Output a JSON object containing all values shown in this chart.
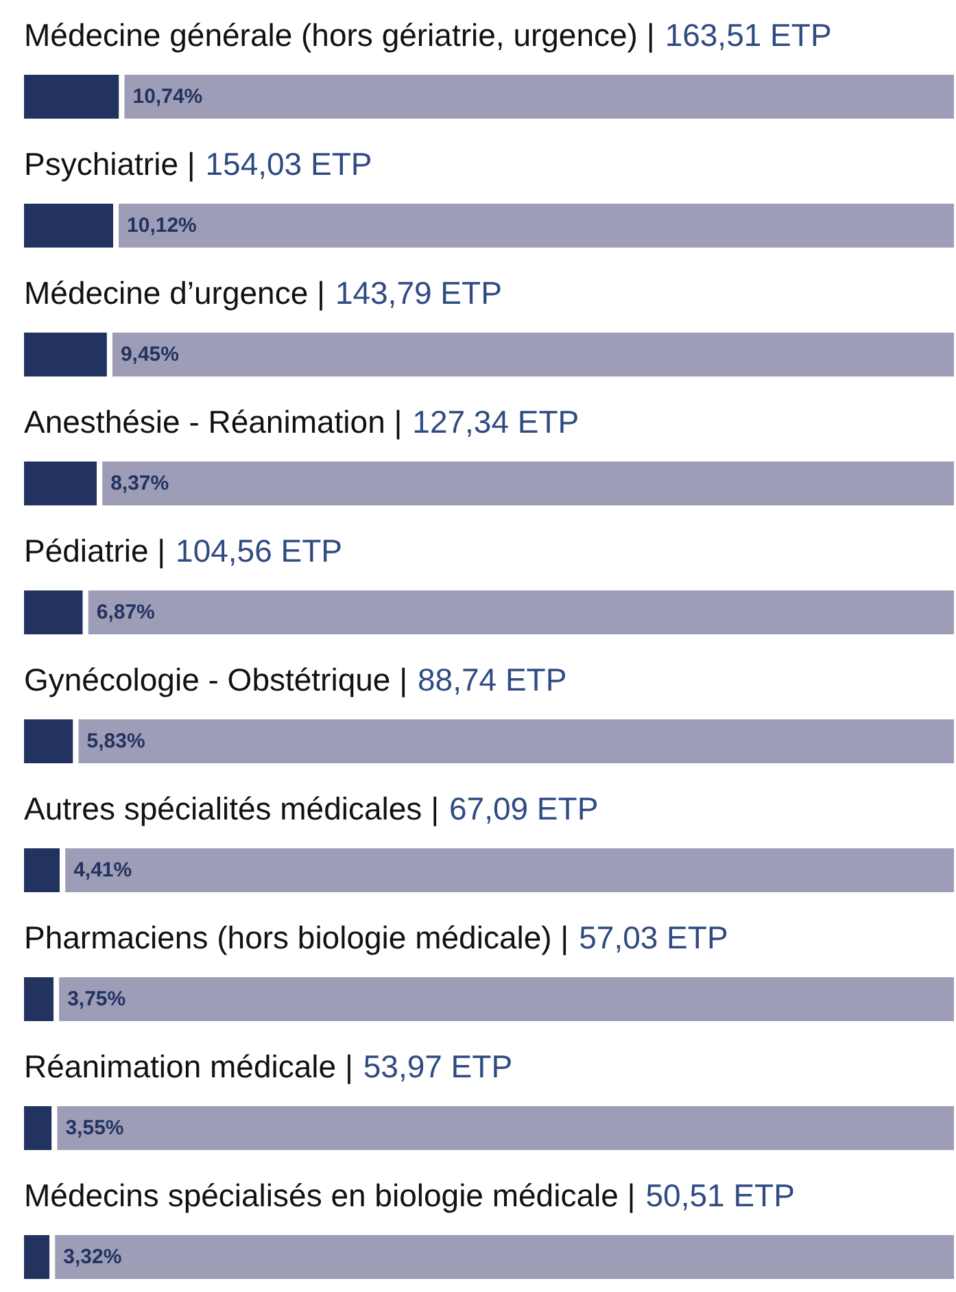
{
  "chart_data": {
    "type": "bar",
    "orientation": "horizontal",
    "stacked": true,
    "categories": [
      "Médecine générale (hors gériatrie, urgence) |",
      "Psychiatrie |",
      "Médecine d’urgence |",
      "Anesthésie - Réanimation |",
      "Pédiatrie |",
      "Gynécologie - Obstétrique |",
      "Autres spécialités médicales |",
      "Pharmaciens (hors biologie médicale) |",
      "Réanimation médicale |",
      "Médecins spécialisés en biologie médicale |"
    ],
    "series": [
      {
        "color": "#22335f",
        "values": [
          10.74,
          10.12,
          9.45,
          8.37,
          6.87,
          5.83,
          4.41,
          3.75,
          3.55,
          3.32
        ],
        "value_labels": [
          "10,74%",
          "10,12%",
          "9,45%",
          "8,37%",
          "6,87%",
          "5,83%",
          "4,41%",
          "3,75%",
          "3,55%",
          "3,32%"
        ]
      },
      {
        "color": "#9e9db8",
        "values": [
          89.26,
          89.88,
          90.55,
          91.63,
          93.13,
          94.17,
          95.59,
          96.25,
          96.45,
          96.68
        ]
      }
    ],
    "tick_labels": false,
    "annotations": [
      "163,51 ETP",
      "154,03 ETP",
      "143,79 ETP",
      "127,34 ETP",
      "104,56 ETP",
      "88,74 ETP",
      "67,09 ETP",
      "57,03 ETP",
      "53,97 ETP",
      "50,51 ETP"
    ]
  }
}
